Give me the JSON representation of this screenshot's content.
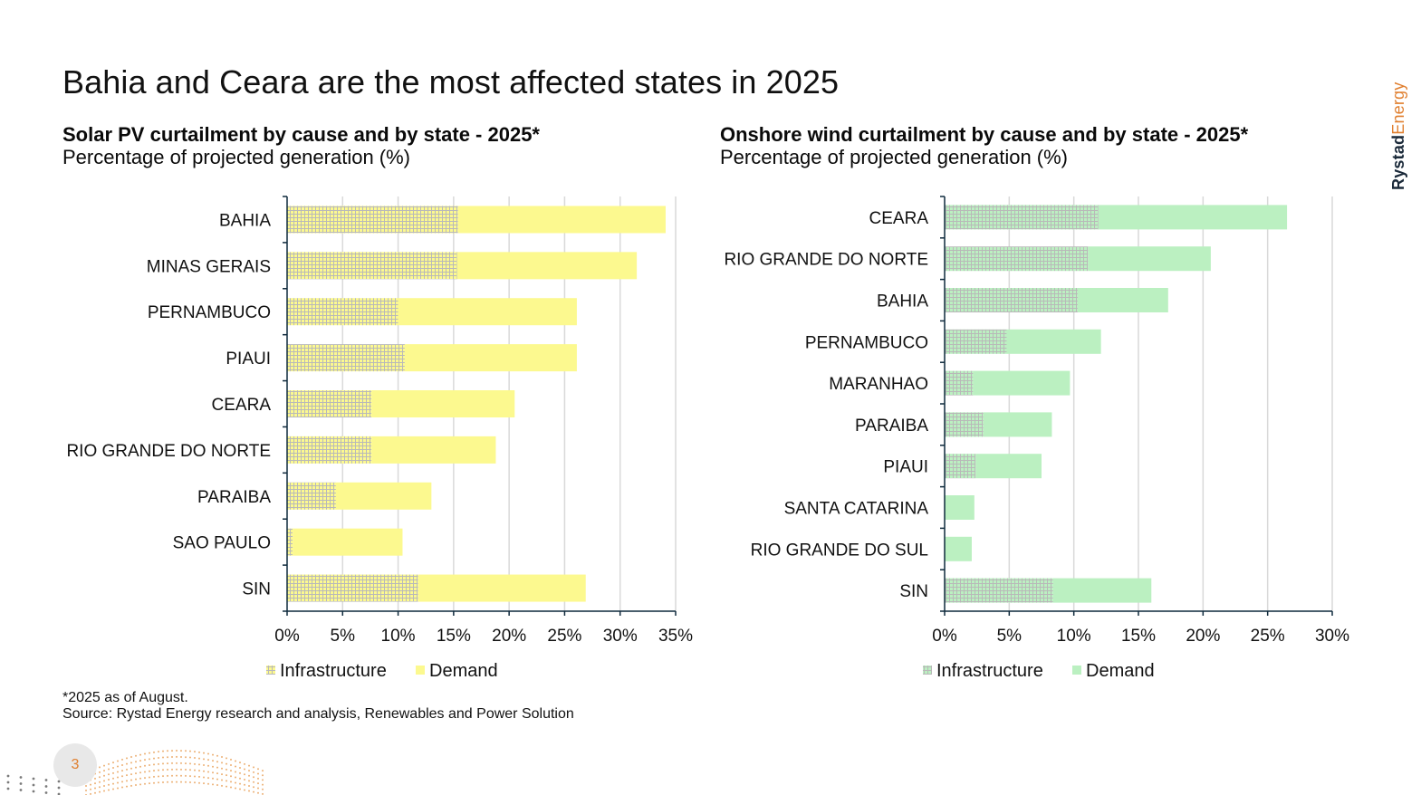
{
  "page": {
    "title": "Bahia and Ceara are the most affected states in 2025",
    "page_number": "3",
    "brand": {
      "part1": "Rystad",
      "part2": "Energy"
    },
    "footnote": "*2025 as of August.",
    "source": "Source: Rystad Energy research and analysis, Renewables and Power Solution"
  },
  "colors": {
    "solar_demand": "#fcf98f",
    "wind_demand": "#bbf0c1",
    "hatch_line": "#b9b9b9",
    "axis": "#0f2a3d",
    "grid": "#d9d9d9",
    "brand_orange": "#e07f2f"
  },
  "chart_data": [
    {
      "id": "solar",
      "type": "bar",
      "orientation": "horizontal",
      "stacked": true,
      "title": "Solar PV curtailment by cause and by state - 2025*",
      "subtitle": "Percentage of projected generation (%)",
      "xlabel": "",
      "ylabel": "",
      "xlim": [
        0,
        35
      ],
      "xticks": [
        0,
        5,
        10,
        15,
        20,
        25,
        30,
        35
      ],
      "xtick_labels": [
        "0%",
        "5%",
        "10%",
        "15%",
        "20%",
        "25%",
        "30%",
        "35%"
      ],
      "grid": "vertical",
      "legend_position": "bottom",
      "categories": [
        "BAHIA",
        "MINAS GERAIS",
        "PERNAMBUCO",
        "PIAUI",
        "CEARA",
        "RIO GRANDE DO NORTE",
        "PARAIBA",
        "SAO PAULO",
        "SIN"
      ],
      "series": [
        {
          "name": "Infrastructure",
          "pattern": "grid-hatch",
          "values": [
            15.4,
            15.3,
            10.0,
            10.6,
            7.6,
            7.6,
            4.4,
            0.5,
            11.8
          ]
        },
        {
          "name": "Demand",
          "pattern": "solid",
          "values": [
            18.7,
            16.2,
            16.1,
            15.5,
            12.9,
            11.2,
            8.6,
            9.9,
            15.1
          ]
        }
      ]
    },
    {
      "id": "wind",
      "type": "bar",
      "orientation": "horizontal",
      "stacked": true,
      "title": "Onshore wind curtailment by cause and by state - 2025*",
      "subtitle": "Percentage of projected generation (%)",
      "xlabel": "",
      "ylabel": "",
      "xlim": [
        0,
        30
      ],
      "xticks": [
        0,
        5,
        10,
        15,
        20,
        25,
        30
      ],
      "xtick_labels": [
        "0%",
        "5%",
        "10%",
        "15%",
        "20%",
        "25%",
        "30%"
      ],
      "grid": "vertical",
      "legend_position": "bottom",
      "categories": [
        "CEARA",
        "RIO GRANDE DO NORTE",
        "BAHIA",
        "PERNAMBUCO",
        "MARANHAO",
        "PARAIBA",
        "PIAUI",
        "SANTA CATARINA",
        "RIO GRANDE DO SUL",
        "SIN"
      ],
      "series": [
        {
          "name": "Infrastructure",
          "pattern": "grid-hatch",
          "values": [
            11.9,
            11.1,
            10.3,
            4.8,
            2.2,
            3.0,
            2.4,
            0.0,
            0.0,
            8.4
          ]
        },
        {
          "name": "Demand",
          "pattern": "solid",
          "values": [
            14.6,
            9.5,
            7.0,
            7.3,
            7.5,
            5.3,
            5.1,
            2.3,
            2.1,
            7.6
          ]
        }
      ]
    }
  ]
}
